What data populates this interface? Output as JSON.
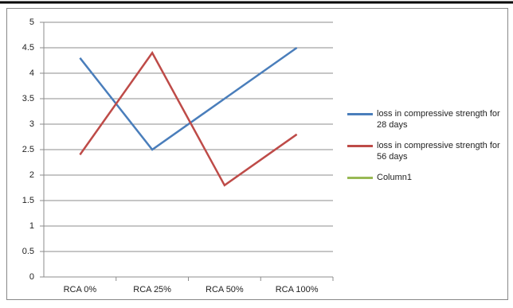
{
  "chart_data": {
    "type": "line",
    "categories": [
      "RCA 0%",
      "RCA 25%",
      "RCA 50%",
      "RCA 100%"
    ],
    "series": [
      {
        "name": "loss in compressive strength for 28 days",
        "color": "#4a7ebb",
        "values": [
          4.3,
          2.5,
          3.5,
          4.5
        ]
      },
      {
        "name": "loss in compressive strength for 56 days",
        "color": "#be4b48",
        "values": [
          2.4,
          4.4,
          1.8,
          2.8
        ]
      },
      {
        "name": "Column1",
        "color": "#98b954",
        "values": [
          null,
          null,
          null,
          null
        ]
      }
    ],
    "ylim": [
      0,
      5
    ],
    "yticks": [
      0,
      0.5,
      1,
      1.5,
      2,
      2.5,
      3,
      3.5,
      4,
      4.5,
      5
    ],
    "grid": true
  }
}
